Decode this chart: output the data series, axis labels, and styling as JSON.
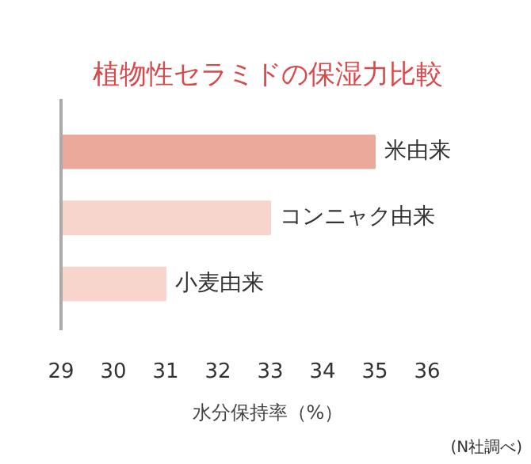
{
  "chart_data": {
    "type": "bar",
    "orientation": "horizontal",
    "title": "植物性セラミドの保湿力比較",
    "categories": [
      "米由来",
      "コンニャク由来",
      "小麦由来"
    ],
    "values": [
      35,
      33,
      31
    ],
    "colors": [
      "#eba99b",
      "#f7d5cc",
      "#f7d5cc"
    ],
    "xlim": [
      29,
      36
    ],
    "xticks": [
      29,
      30,
      31,
      32,
      33,
      34,
      35,
      36
    ],
    "xlabel": "水分保持率（%）",
    "annotations": [
      "(N社調べ)"
    ],
    "grid": false,
    "legend": false
  }
}
